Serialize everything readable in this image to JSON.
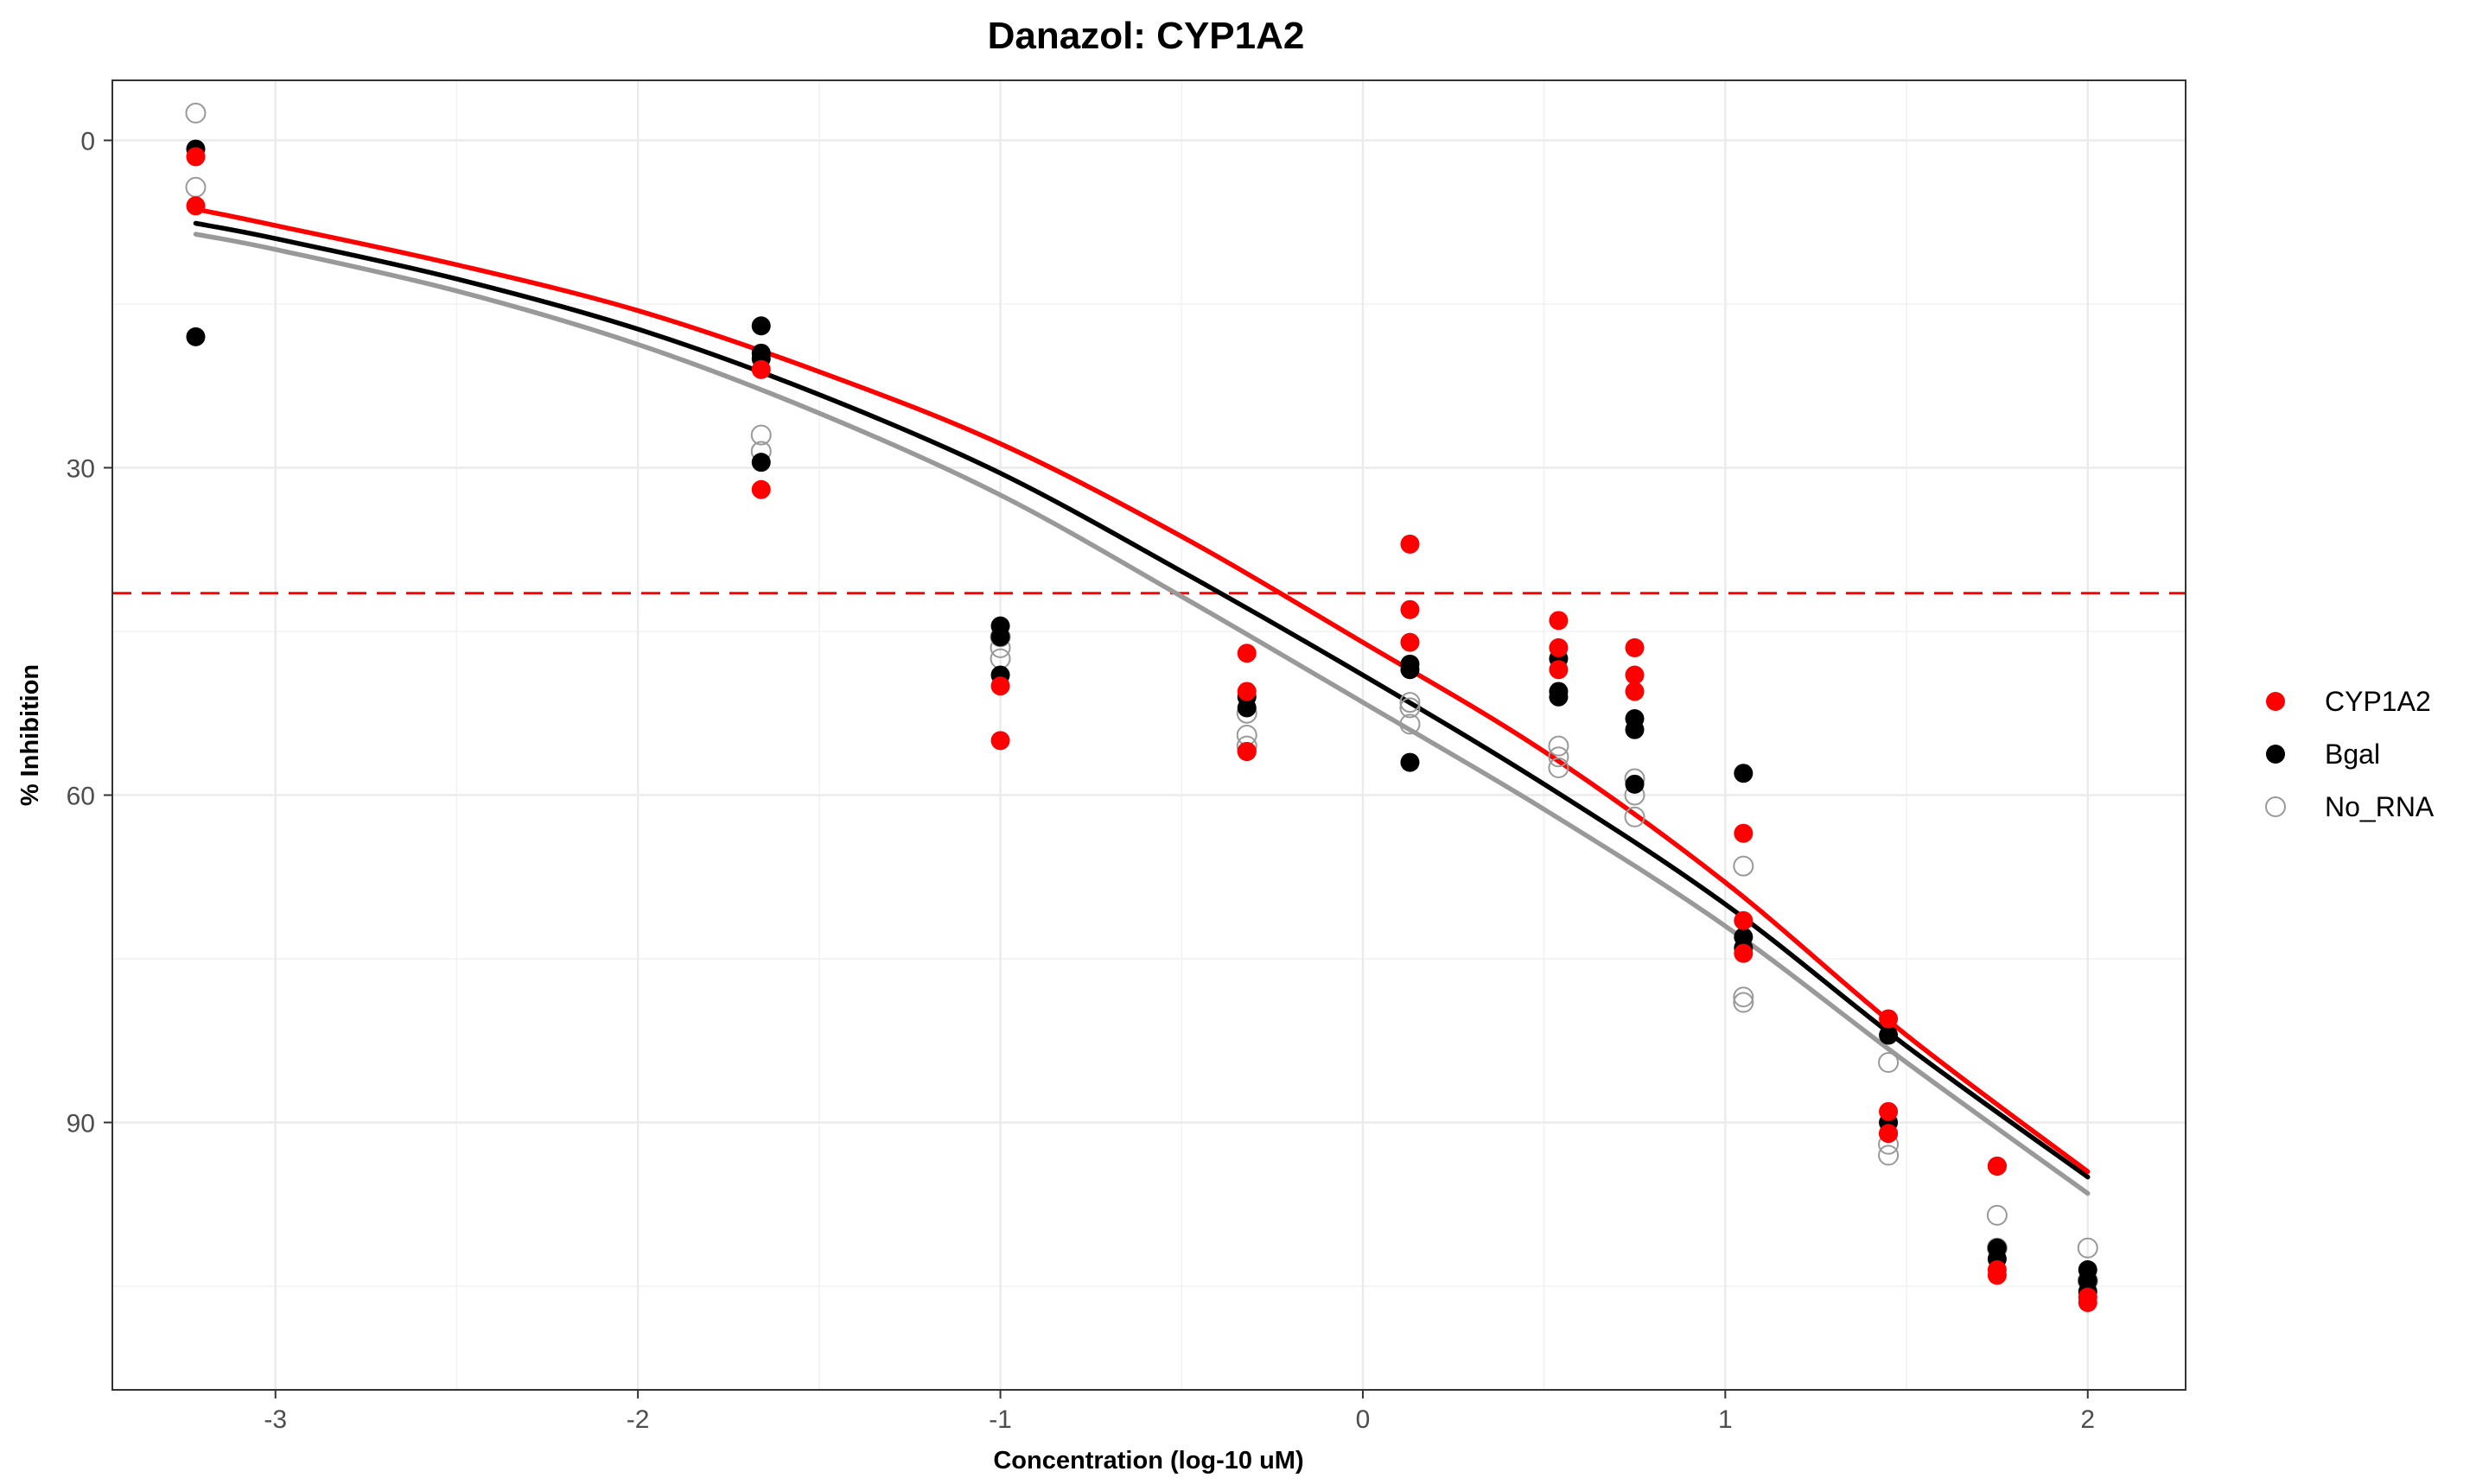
{
  "chart_data": {
    "type": "scatter",
    "title": "Danazol: CYP1A2",
    "xlabel": "Concentration (log-10 uM)",
    "ylabel": "% Inhibition",
    "xlim": [
      -3.45,
      2.27
    ],
    "ylim": [
      -5.5,
      114.5
    ],
    "y_reversed": true,
    "x_ticks": [
      -3,
      -2,
      -1,
      0,
      1,
      2
    ],
    "x_tick_labels": [
      "-3",
      "-2",
      "-1",
      "0",
      "1",
      "2"
    ],
    "y_ticks": [
      0,
      30,
      60,
      90
    ],
    "y_tick_labels": [
      "0",
      "30",
      "60",
      "90"
    ],
    "grid": true,
    "reference_line": {
      "y": 41.5,
      "color": "#ff0000",
      "style": "dashed"
    },
    "legend_position": "right",
    "series": [
      {
        "name": "CYP1A2",
        "color": "#ff0000",
        "marker": "filled",
        "points": [
          [
            -3.22,
            1.5
          ],
          [
            -3.22,
            6.0
          ],
          [
            -1.66,
            21.0
          ],
          [
            -1.66,
            32.0
          ],
          [
            -1.0,
            50.0
          ],
          [
            -1.0,
            55.0
          ],
          [
            -0.32,
            47.0
          ],
          [
            -0.32,
            50.5
          ],
          [
            -0.32,
            56.0
          ],
          [
            0.13,
            37.0
          ],
          [
            0.13,
            43.0
          ],
          [
            0.13,
            46.0
          ],
          [
            0.54,
            44.0
          ],
          [
            0.54,
            46.5
          ],
          [
            0.54,
            48.5
          ],
          [
            0.75,
            46.5
          ],
          [
            0.75,
            49.0
          ],
          [
            0.75,
            50.5
          ],
          [
            1.05,
            63.5
          ],
          [
            1.05,
            71.5
          ],
          [
            1.05,
            74.5
          ],
          [
            1.45,
            80.5
          ],
          [
            1.45,
            89.0
          ],
          [
            1.45,
            91.0
          ],
          [
            1.75,
            94.0
          ],
          [
            1.75,
            103.5
          ],
          [
            1.75,
            104.0
          ],
          [
            2.0,
            106.0
          ],
          [
            2.0,
            106.5
          ]
        ],
        "fit": [
          [
            -3.22,
            6.3
          ],
          [
            -3.0,
            7.8
          ],
          [
            -2.5,
            11.4
          ],
          [
            -2.0,
            15.6
          ],
          [
            -1.5,
            21.2
          ],
          [
            -1.0,
            27.8
          ],
          [
            -0.5,
            36.3
          ],
          [
            0.0,
            46.0
          ],
          [
            0.5,
            56.0
          ],
          [
            1.0,
            68.0
          ],
          [
            1.5,
            82.0
          ],
          [
            2.0,
            94.5
          ]
        ]
      },
      {
        "name": "Bgal",
        "color": "#000000",
        "marker": "filled",
        "points": [
          [
            -3.22,
            0.8
          ],
          [
            -3.22,
            18.0
          ],
          [
            -1.66,
            17.0
          ],
          [
            -1.66,
            19.5
          ],
          [
            -1.66,
            20.0
          ],
          [
            -1.66,
            29.5
          ],
          [
            -1.0,
            44.5
          ],
          [
            -1.0,
            45.5
          ],
          [
            -1.0,
            49.0
          ],
          [
            -0.32,
            51.0
          ],
          [
            -0.32,
            52.0
          ],
          [
            -0.32,
            56.0
          ],
          [
            0.13,
            48.0
          ],
          [
            0.13,
            48.5
          ],
          [
            0.13,
            57.0
          ],
          [
            0.54,
            47.5
          ],
          [
            0.54,
            50.5
          ],
          [
            0.54,
            51.0
          ],
          [
            0.75,
            53.0
          ],
          [
            0.75,
            54.0
          ],
          [
            0.75,
            59.0
          ],
          [
            1.05,
            58.0
          ],
          [
            1.05,
            73.0
          ],
          [
            1.05,
            74.0
          ],
          [
            1.45,
            82.0
          ],
          [
            1.45,
            90.0
          ],
          [
            1.45,
            91.0
          ],
          [
            1.75,
            94.0
          ],
          [
            1.75,
            101.5
          ],
          [
            1.75,
            102.5
          ],
          [
            2.0,
            103.5
          ],
          [
            2.0,
            104.5
          ],
          [
            2.0,
            105.5
          ]
        ],
        "fit": [
          [
            -3.22,
            7.6
          ],
          [
            -3.0,
            9.0
          ],
          [
            -2.5,
            12.7
          ],
          [
            -2.0,
            17.3
          ],
          [
            -1.5,
            23.3
          ],
          [
            -1.0,
            30.5
          ],
          [
            -0.5,
            39.5
          ],
          [
            0.0,
            49.0
          ],
          [
            0.5,
            59.0
          ],
          [
            1.0,
            70.0
          ],
          [
            1.5,
            83.0
          ],
          [
            2.0,
            95.0
          ]
        ]
      },
      {
        "name": "No_RNA",
        "color": "#999999",
        "marker": "open",
        "points": [
          [
            -3.22,
            -2.5
          ],
          [
            -3.22,
            4.3
          ],
          [
            -1.66,
            27.0
          ],
          [
            -1.66,
            28.5
          ],
          [
            -1.0,
            45.5
          ],
          [
            -1.0,
            46.5
          ],
          [
            -1.0,
            47.5
          ],
          [
            -0.32,
            52.5
          ],
          [
            -0.32,
            54.5
          ],
          [
            -0.32,
            55.5
          ],
          [
            0.13,
            51.5
          ],
          [
            0.13,
            52.0
          ],
          [
            0.13,
            53.5
          ],
          [
            0.54,
            55.5
          ],
          [
            0.54,
            56.5
          ],
          [
            0.54,
            57.5
          ],
          [
            0.75,
            58.5
          ],
          [
            0.75,
            60.0
          ],
          [
            0.75,
            62.0
          ],
          [
            1.05,
            66.5
          ],
          [
            1.05,
            78.5
          ],
          [
            1.05,
            79.0
          ],
          [
            1.45,
            84.5
          ],
          [
            1.45,
            92.0
          ],
          [
            1.45,
            93.0
          ],
          [
            1.75,
            98.5
          ],
          [
            1.75,
            101.5
          ],
          [
            2.0,
            101.5
          ],
          [
            2.0,
            104.5
          ]
        ],
        "fit": [
          [
            -3.22,
            8.6
          ],
          [
            -3.0,
            10.0
          ],
          [
            -2.5,
            13.8
          ],
          [
            -2.0,
            18.7
          ],
          [
            -1.5,
            25.0
          ],
          [
            -1.0,
            32.5
          ],
          [
            -0.5,
            41.8
          ],
          [
            0.0,
            51.5
          ],
          [
            0.5,
            61.3
          ],
          [
            1.0,
            72.0
          ],
          [
            1.5,
            84.5
          ],
          [
            2.0,
            96.5
          ]
        ]
      }
    ]
  }
}
